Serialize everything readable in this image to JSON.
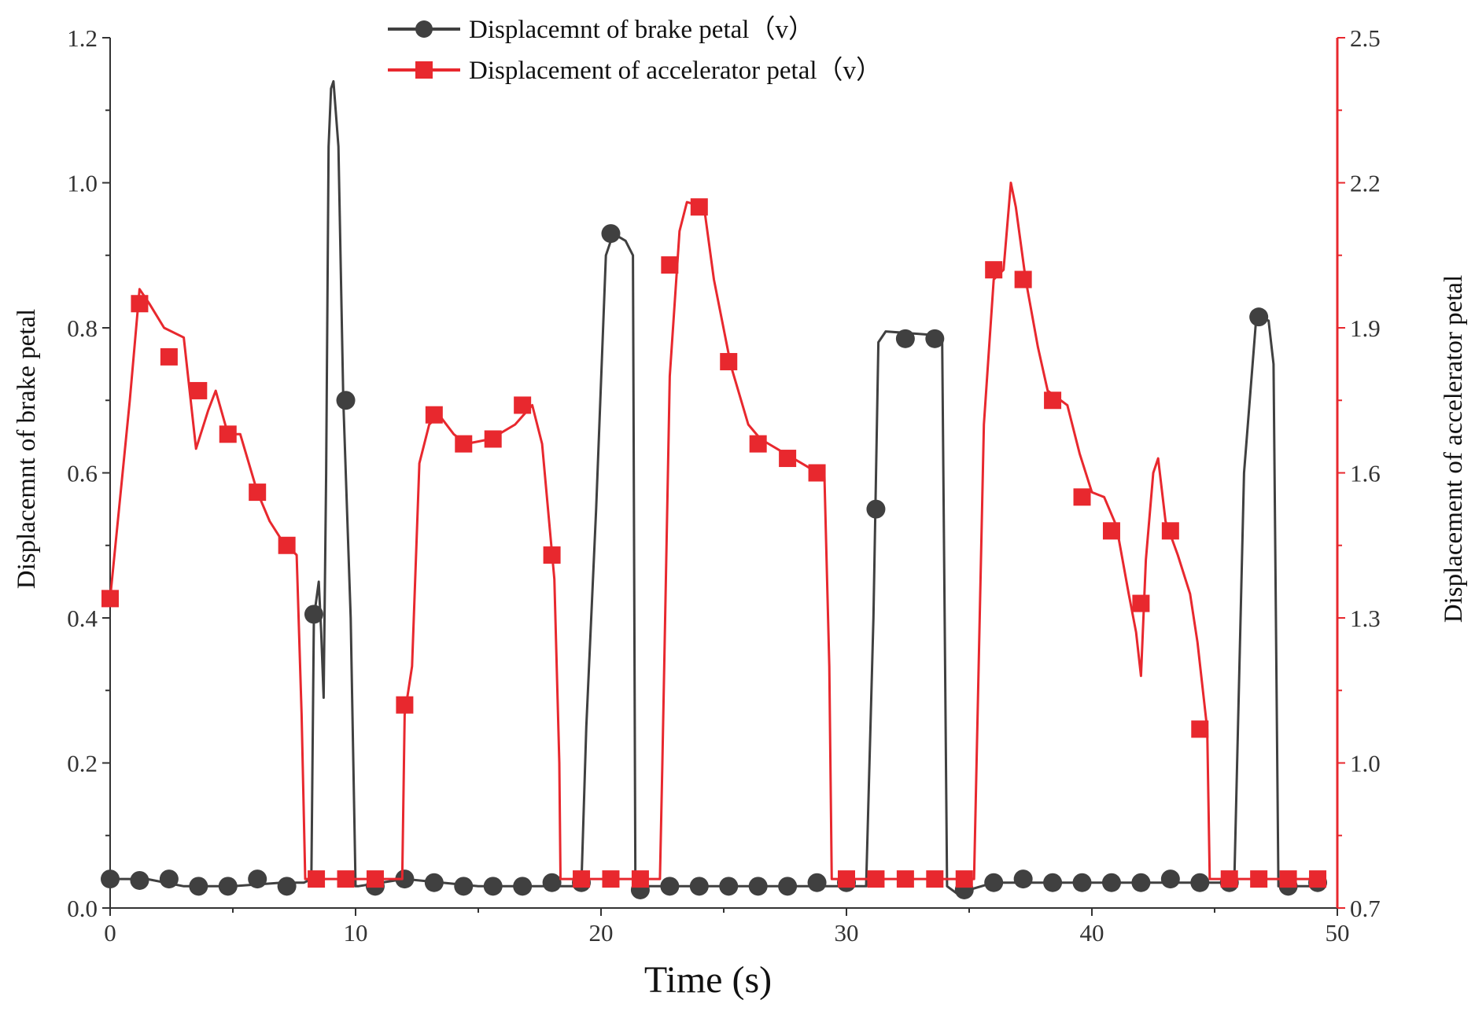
{
  "chart_data": {
    "type": "line",
    "xlabel": "Time (s)",
    "ylabel_left": "Displacemnt of  brake petal",
    "ylabel_right": "Displacement of accelerator petal",
    "xlim": [
      0,
      50
    ],
    "ylim_left": [
      0.0,
      1.2
    ],
    "ylim_right": [
      0.7,
      2.5
    ],
    "x_ticks": [
      "0",
      "10",
      "20",
      "30",
      "40",
      "50"
    ],
    "y_left_ticks": [
      "0.0",
      "0.2",
      "0.4",
      "0.6",
      "0.8",
      "1.0",
      "1.2"
    ],
    "y_right_ticks": [
      "0.7",
      "1.0",
      "1.3",
      "1.6",
      "1.9",
      "2.2",
      "2.5"
    ],
    "grid": false,
    "legend_position": "top-center",
    "series": [
      {
        "name": "Displacemnt of  brake petal（v）",
        "axis": "left",
        "color": "#404040",
        "marker": "circle",
        "x": [
          0,
          1.5,
          3,
          5,
          7,
          7.9,
          8.2,
          8.3,
          8.5,
          8.6,
          8.7,
          8.8,
          8.9,
          9.0,
          9.1,
          9.3,
          9.5,
          9.8,
          10.0,
          10.1,
          12,
          15,
          18,
          19.2,
          19.4,
          19.8,
          20.2,
          20.5,
          21.0,
          21.3,
          21.4,
          21.6,
          25,
          29,
          30.8,
          31.1,
          31.3,
          31.6,
          33.6,
          33.9,
          34.1,
          34.5,
          36,
          40,
          45.5,
          45.8,
          46.2,
          46.7,
          47.2,
          47.4,
          47.6,
          48,
          49.5
        ],
        "y": [
          0.04,
          0.04,
          0.03,
          0.03,
          0.035,
          0.035,
          0.04,
          0.4,
          0.45,
          0.38,
          0.29,
          0.6,
          1.05,
          1.13,
          1.14,
          1.05,
          0.7,
          0.4,
          0.03,
          0.03,
          0.04,
          0.03,
          0.03,
          0.03,
          0.25,
          0.55,
          0.9,
          0.93,
          0.92,
          0.9,
          0.03,
          0.03,
          0.03,
          0.03,
          0.03,
          0.4,
          0.78,
          0.795,
          0.79,
          0.78,
          0.03,
          0.02,
          0.035,
          0.035,
          0.035,
          0.035,
          0.6,
          0.815,
          0.81,
          0.75,
          0.03,
          0.03,
          0.03
        ],
        "marker_x": [
          0,
          1.2,
          2.4,
          3.6,
          4.8,
          6.0,
          7.2,
          8.3,
          9.6,
          10.8,
          12.0,
          13.2,
          14.4,
          15.6,
          16.8,
          18.0,
          19.2,
          20.4,
          21.6,
          22.8,
          24.0,
          25.2,
          26.4,
          27.6,
          28.8,
          30.0,
          31.2,
          32.4,
          33.6,
          34.8,
          36.0,
          37.2,
          38.4,
          39.6,
          40.8,
          42.0,
          43.2,
          44.4,
          45.6,
          46.8,
          48.0,
          49.2
        ],
        "marker_y": [
          0.04,
          0.038,
          0.04,
          0.03,
          0.03,
          0.04,
          0.03,
          0.405,
          0.7,
          0.03,
          0.04,
          0.035,
          0.03,
          0.03,
          0.03,
          0.035,
          0.035,
          0.93,
          0.025,
          0.03,
          0.03,
          0.03,
          0.03,
          0.03,
          0.035,
          0.035,
          0.55,
          0.785,
          0.785,
          0.025,
          0.035,
          0.04,
          0.035,
          0.035,
          0.035,
          0.035,
          0.04,
          0.035,
          0.035,
          0.815,
          0.03,
          0.035
        ]
      },
      {
        "name": "Displacement of accelerator petal（v）",
        "axis": "right",
        "color": "#e8282e",
        "marker": "square",
        "x": [
          0,
          0.8,
          1.2,
          1.6,
          2.2,
          3.0,
          3.5,
          4.0,
          4.3,
          4.8,
          5.3,
          6.0,
          6.5,
          7.0,
          7.6,
          7.8,
          7.95,
          8.0,
          11.9,
          12.0,
          12.3,
          12.6,
          13.0,
          13.4,
          14.0,
          14.5,
          15.5,
          16.5,
          17.2,
          17.6,
          18.1,
          18.3,
          18.35,
          22.4,
          22.5,
          22.8,
          23.2,
          23.5,
          24.2,
          24.6,
          25.3,
          26.0,
          26.5,
          27.5,
          28.5,
          29.1,
          29.3,
          29.4,
          35.2,
          35.3,
          35.6,
          36.0,
          36.4,
          36.7,
          36.9,
          37.3,
          37.8,
          38.2,
          39.0,
          39.5,
          40.0,
          40.5,
          41.0,
          41.5,
          41.8,
          42.0,
          42.2,
          42.5,
          42.7,
          43.0,
          43.5,
          44.0,
          44.3,
          44.7,
          44.8,
          45.5,
          49.5
        ],
        "y": [
          1.34,
          1.75,
          1.98,
          1.95,
          1.9,
          1.88,
          1.65,
          1.73,
          1.77,
          1.68,
          1.68,
          1.56,
          1.5,
          1.46,
          1.43,
          1.1,
          0.76,
          0.76,
          0.76,
          1.1,
          1.2,
          1.62,
          1.7,
          1.72,
          1.68,
          1.66,
          1.67,
          1.7,
          1.74,
          1.66,
          1.38,
          1.0,
          0.76,
          0.76,
          1.0,
          1.8,
          2.1,
          2.16,
          2.15,
          2.0,
          1.82,
          1.7,
          1.67,
          1.64,
          1.61,
          1.6,
          1.2,
          0.76,
          0.76,
          1.0,
          1.7,
          2.0,
          2.02,
          2.2,
          2.15,
          2.0,
          1.86,
          1.77,
          1.74,
          1.64,
          1.56,
          1.55,
          1.49,
          1.35,
          1.27,
          1.18,
          1.42,
          1.6,
          1.63,
          1.5,
          1.43,
          1.35,
          1.25,
          1.07,
          0.76,
          0.76,
          0.76
        ],
        "marker_x": [
          0,
          1.2,
          2.4,
          3.6,
          4.8,
          6.0,
          7.2,
          8.4,
          9.6,
          10.8,
          12.0,
          13.2,
          14.4,
          15.6,
          16.8,
          18.0,
          19.2,
          20.4,
          21.6,
          22.8,
          24.0,
          25.2,
          26.4,
          27.6,
          28.8,
          30.0,
          31.2,
          32.4,
          33.6,
          34.8,
          36.0,
          37.2,
          38.4,
          39.6,
          40.8,
          42.0,
          43.2,
          44.4,
          45.6,
          46.8,
          48.0,
          49.2
        ],
        "marker_y": [
          1.34,
          1.95,
          1.84,
          1.77,
          1.68,
          1.56,
          1.45,
          0.76,
          0.76,
          0.76,
          1.12,
          1.72,
          1.66,
          1.67,
          1.74,
          1.43,
          0.76,
          0.76,
          0.76,
          2.03,
          2.15,
          1.83,
          1.66,
          1.63,
          1.6,
          0.76,
          0.76,
          0.76,
          0.76,
          0.76,
          2.02,
          2.0,
          1.75,
          1.55,
          1.48,
          1.33,
          1.48,
          1.07,
          0.76,
          0.76,
          0.76,
          0.76
        ]
      }
    ]
  }
}
